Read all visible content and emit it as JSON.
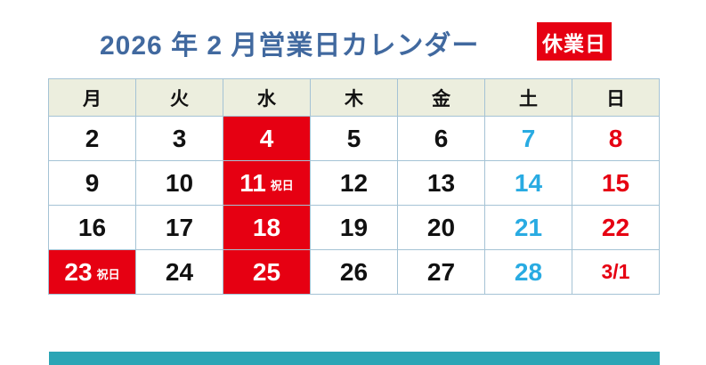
{
  "title": "2026 年 2 月営業日カレンダー",
  "legend": {
    "closed_label": "休業日"
  },
  "colors": {
    "title_blue": "#41699f",
    "closed_red": "#e60012",
    "saturday_blue": "#29abe2",
    "sunday_red": "#e60012",
    "header_bg": "#eceede",
    "grid_border": "#a5c3d5",
    "footer_teal": "#2ba5b5"
  },
  "calendar": {
    "weekdays": [
      "月",
      "火",
      "水",
      "木",
      "金",
      "土",
      "日"
    ],
    "rows": [
      [
        {
          "day": "2",
          "type": "weekday"
        },
        {
          "day": "3",
          "type": "weekday"
        },
        {
          "day": "4",
          "type": "closed"
        },
        {
          "day": "5",
          "type": "weekday"
        },
        {
          "day": "6",
          "type": "weekday"
        },
        {
          "day": "7",
          "type": "saturday"
        },
        {
          "day": "8",
          "type": "sunday"
        }
      ],
      [
        {
          "day": "9",
          "type": "weekday"
        },
        {
          "day": "10",
          "type": "weekday"
        },
        {
          "day": "11",
          "note": "祝日",
          "type": "closed"
        },
        {
          "day": "12",
          "type": "weekday"
        },
        {
          "day": "13",
          "type": "weekday"
        },
        {
          "day": "14",
          "type": "saturday"
        },
        {
          "day": "15",
          "type": "sunday"
        }
      ],
      [
        {
          "day": "16",
          "type": "weekday"
        },
        {
          "day": "17",
          "type": "weekday"
        },
        {
          "day": "18",
          "type": "closed"
        },
        {
          "day": "19",
          "type": "weekday"
        },
        {
          "day": "20",
          "type": "weekday"
        },
        {
          "day": "21",
          "type": "saturday"
        },
        {
          "day": "22",
          "type": "sunday"
        }
      ],
      [
        {
          "day": "23",
          "note": "祝日",
          "type": "closed"
        },
        {
          "day": "24",
          "type": "weekday"
        },
        {
          "day": "25",
          "type": "closed"
        },
        {
          "day": "26",
          "type": "weekday"
        },
        {
          "day": "27",
          "type": "weekday"
        },
        {
          "day": "28",
          "type": "saturday"
        },
        {
          "day": "3/1",
          "type": "sunday"
        }
      ]
    ]
  }
}
